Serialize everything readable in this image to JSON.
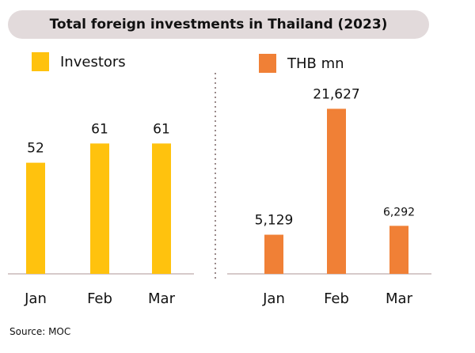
{
  "title": "Total foreign investments in Thailand (2023)",
  "source": "Source: MOC",
  "colors": {
    "investors": "#ffc20e",
    "thb": "#f08036",
    "title_bg": "#e2dadb",
    "axis": "#c9b8b8",
    "divider": "#9a8a8a"
  },
  "chart_data": [
    {
      "type": "bar",
      "categories": [
        "Jan",
        "Feb",
        "Mar"
      ],
      "series": [
        {
          "name": "Investors",
          "values": [
            52,
            61,
            61
          ]
        }
      ],
      "value_labels": [
        "52",
        "61",
        "61"
      ],
      "ylim": [
        0,
        100
      ]
    },
    {
      "type": "bar",
      "categories": [
        "Jan",
        "Feb",
        "Mar"
      ],
      "series": [
        {
          "name": "THB mn",
          "values": [
            5129,
            21627,
            6292
          ]
        }
      ],
      "value_labels": [
        "5,129",
        "21,627",
        "6,292"
      ],
      "ylim": [
        0,
        28000
      ]
    }
  ]
}
